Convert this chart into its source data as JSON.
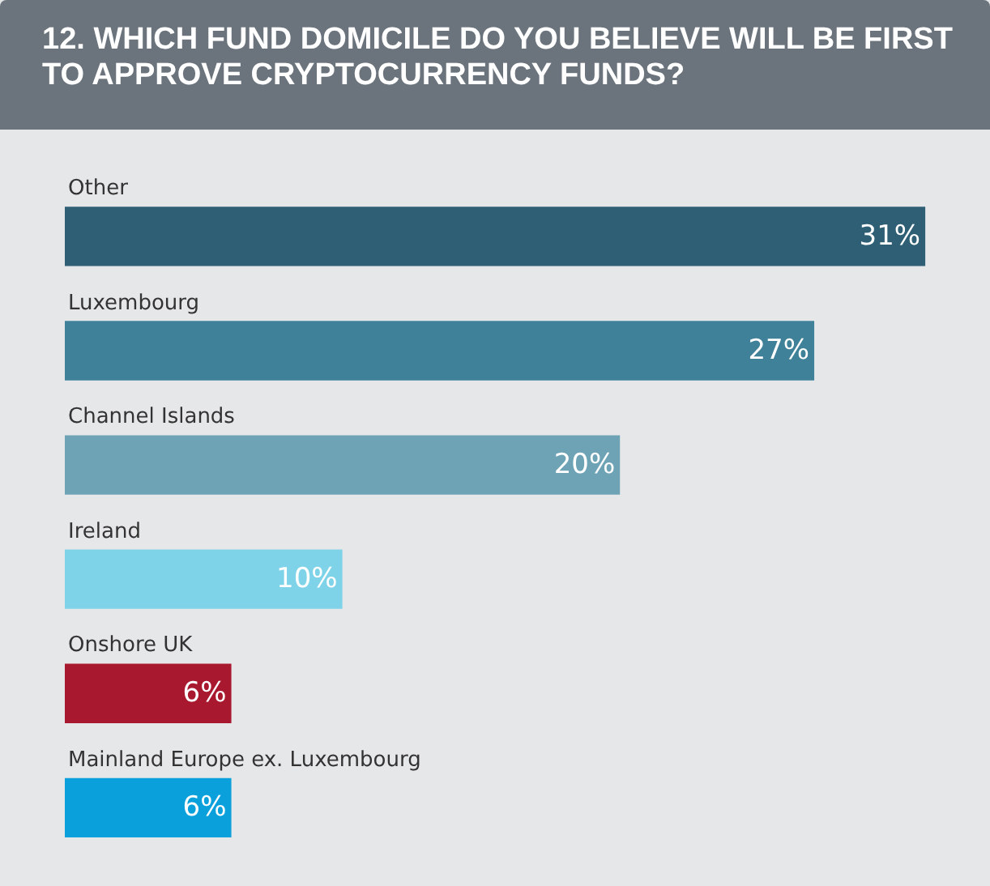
{
  "chart_data": {
    "type": "bar",
    "orientation": "horizontal",
    "title": "12. WHICH FUND DOMICILE DO YOU BELIEVE WILL BE FIRST TO APPROVE CRYPTOCURRENCY FUNDS?",
    "categories": [
      "Other",
      "Luxembourg",
      "Channel Islands",
      "Ireland",
      "Onshore UK",
      "Mainland Europe ex. Luxembourg"
    ],
    "values": [
      31,
      27,
      20,
      10,
      6,
      6
    ],
    "value_labels": [
      "31%",
      "27%",
      "20%",
      "10%",
      "6%",
      "6%"
    ],
    "colors": [
      "#2e5f74",
      "#3f8198",
      "#6ea3b5",
      "#7fd3e8",
      "#a8182f",
      "#0aa0dc"
    ]
  }
}
